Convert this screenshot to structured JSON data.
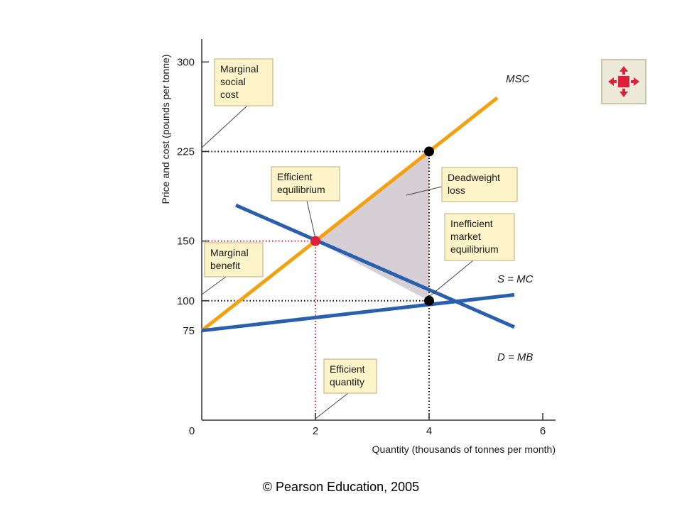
{
  "chart_data": {
    "type": "line",
    "title": "",
    "xlabel": "Quantity (thousands of tonnes per month)",
    "ylabel": "Price and cost (pounds per tonne)",
    "xlim": [
      0,
      6.2
    ],
    "ylim": [
      0,
      300
    ],
    "x_ticks": [
      "0",
      "2",
      "4",
      "6"
    ],
    "y_ticks": [
      "75",
      "100",
      "150",
      "225",
      "300"
    ],
    "highlight_color": "#e0203a",
    "series": [
      {
        "name": "MSC",
        "color": "#f5a00e",
        "points": [
          [
            0,
            75
          ],
          [
            5.2,
            270
          ]
        ]
      },
      {
        "name": "S = MC",
        "color": "#2a5fae",
        "points": [
          [
            0,
            75
          ],
          [
            5.5,
            105
          ]
        ]
      },
      {
        "name": "D = MB",
        "color": "#2a5fae",
        "points": [
          [
            0.6,
            180
          ],
          [
            5.5,
            78
          ]
        ]
      }
    ],
    "deadweight_loss": {
      "color": "#d6d0d6",
      "points": [
        [
          2,
          150
        ],
        [
          4,
          225
        ],
        [
          4,
          100
        ]
      ]
    },
    "points": [
      {
        "x": 2,
        "y": 150,
        "color": "#e0203a"
      },
      {
        "x": 4,
        "y": 225,
        "color": "#000000"
      },
      {
        "x": 4,
        "y": 100,
        "color": "#000000"
      }
    ],
    "annotations": [
      {
        "lines": [
          "Marginal",
          "social",
          "cost"
        ]
      },
      {
        "lines": [
          "Efficient",
          "equilibrium"
        ]
      },
      {
        "lines": [
          "Deadweight",
          "loss"
        ]
      },
      {
        "lines": [
          "Inefficient",
          "market",
          "equilibrium"
        ]
      },
      {
        "lines": [
          "Marginal",
          "benefit"
        ]
      },
      {
        "lines": [
          "Efficient",
          "quantity"
        ]
      }
    ],
    "annotation_style": {
      "fill": "#fdf3c8",
      "border": "#c8b98a"
    }
  },
  "footer": {
    "copyright": "© Pearson Education, 2005"
  },
  "nav_button": {
    "icon": "contract-arrows-icon",
    "color": "#e0203a"
  }
}
